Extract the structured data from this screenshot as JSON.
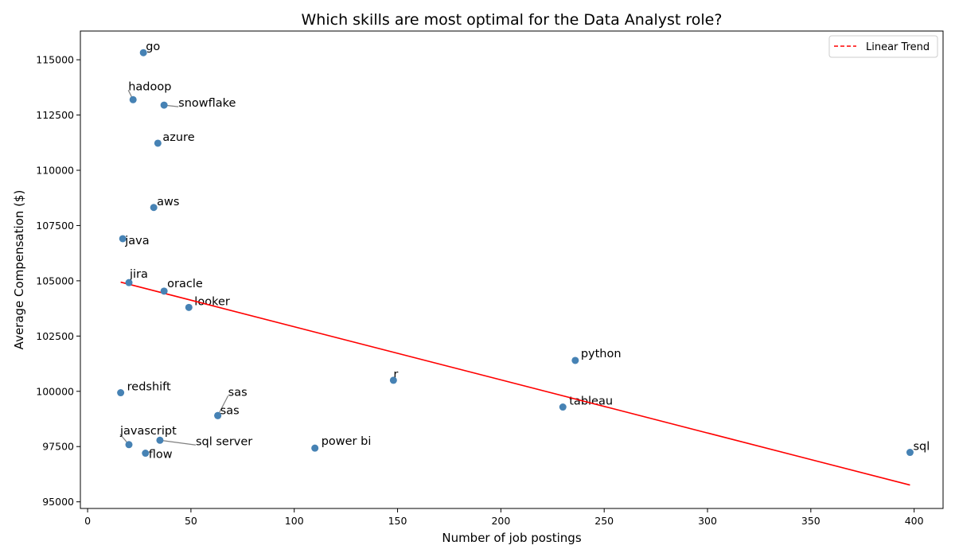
{
  "chart_data": {
    "type": "scatter",
    "title": "Which skills are most optimal for the Data Analyst role?",
    "xlabel": "Number of job postings",
    "ylabel": "Average Compensation ($)",
    "xlim": [
      -3.5,
      414
    ],
    "ylim": [
      94700,
      116300
    ],
    "x_ticks": [
      0,
      50,
      100,
      150,
      200,
      250,
      300,
      350,
      400
    ],
    "y_ticks": [
      95000,
      97500,
      100000,
      102500,
      105000,
      107500,
      110000,
      112500,
      115000
    ],
    "grid": false,
    "legend_position": "top-right",
    "point_color": "#4682b4",
    "trend_color": "#ff0000",
    "points": [
      {
        "label": "go",
        "x": 27,
        "y": 115320
      },
      {
        "label": "hadoop",
        "x": 22,
        "y": 113193
      },
      {
        "label": "snowflake",
        "x": 37,
        "y": 112948
      },
      {
        "label": "azure",
        "x": 34,
        "y": 111225
      },
      {
        "label": "aws",
        "x": 32,
        "y": 108317
      },
      {
        "label": "java",
        "x": 17,
        "y": 106906
      },
      {
        "label": "jira",
        "x": 20,
        "y": 104918
      },
      {
        "label": "oracle",
        "x": 37,
        "y": 104534
      },
      {
        "label": "looker",
        "x": 49,
        "y": 103795
      },
      {
        "label": "python",
        "x": 236,
        "y": 101397
      },
      {
        "label": "r",
        "x": 148,
        "y": 100499
      },
      {
        "label": "redshift",
        "x": 16,
        "y": 99936
      },
      {
        "label": "sas",
        "x": 63,
        "y": 98902
      },
      {
        "label": "tableau",
        "x": 230,
        "y": 99288
      },
      {
        "label": "sql server",
        "x": 35,
        "y": 97786
      },
      {
        "label": "javascript",
        "x": 20,
        "y": 97587
      },
      {
        "label": "power bi",
        "x": 110,
        "y": 97431
      },
      {
        "label": "flow",
        "x": 28,
        "y": 97200
      },
      {
        "label": "sql",
        "x": 398,
        "y": 97237
      },
      {
        "label": "sas",
        "x": 63,
        "y": 98902
      }
    ],
    "trend": {
      "name": "Linear Trend",
      "x": [
        16,
        398
      ],
      "y": [
        104940,
        95760
      ]
    }
  }
}
